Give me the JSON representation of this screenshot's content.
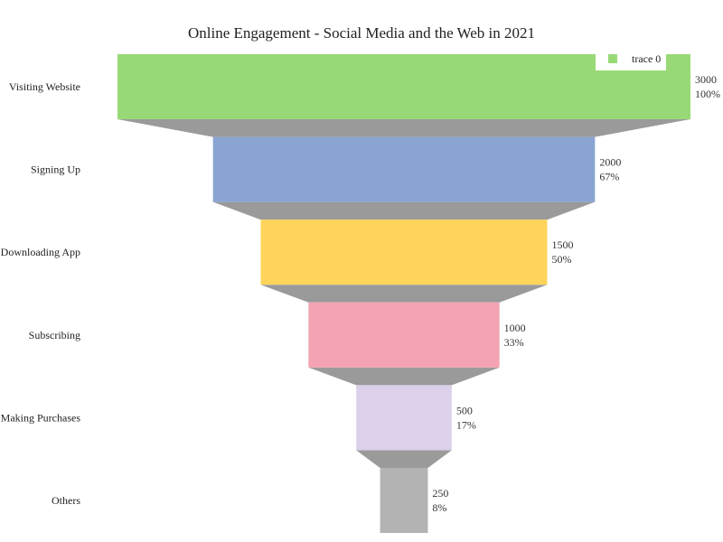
{
  "chart_data": {
    "type": "funnel",
    "title": "Online Engagement - Social Media and the Web in 2021",
    "categories": [
      "Visiting Website",
      "Signing Up",
      "Downloading App",
      "Subscribing",
      "Making Purchases",
      "Others"
    ],
    "values": [
      3000,
      2000,
      1500,
      1000,
      500,
      250
    ],
    "percent_labels": [
      "100%",
      "67%",
      "50%",
      "33%",
      "17%",
      "8%"
    ],
    "colors": [
      "#98d977",
      "#8aa4d2",
      "#ffd45a",
      "#f3a3b2",
      "#ddd0ea",
      "#b3b3b3"
    ],
    "connector_color": "#9a9a9a",
    "series": [
      {
        "name": "trace 0",
        "values": [
          3000,
          2000,
          1500,
          1000,
          500,
          250
        ]
      }
    ],
    "legend": {
      "position": "top-right",
      "entries": [
        "trace 0"
      ]
    }
  }
}
